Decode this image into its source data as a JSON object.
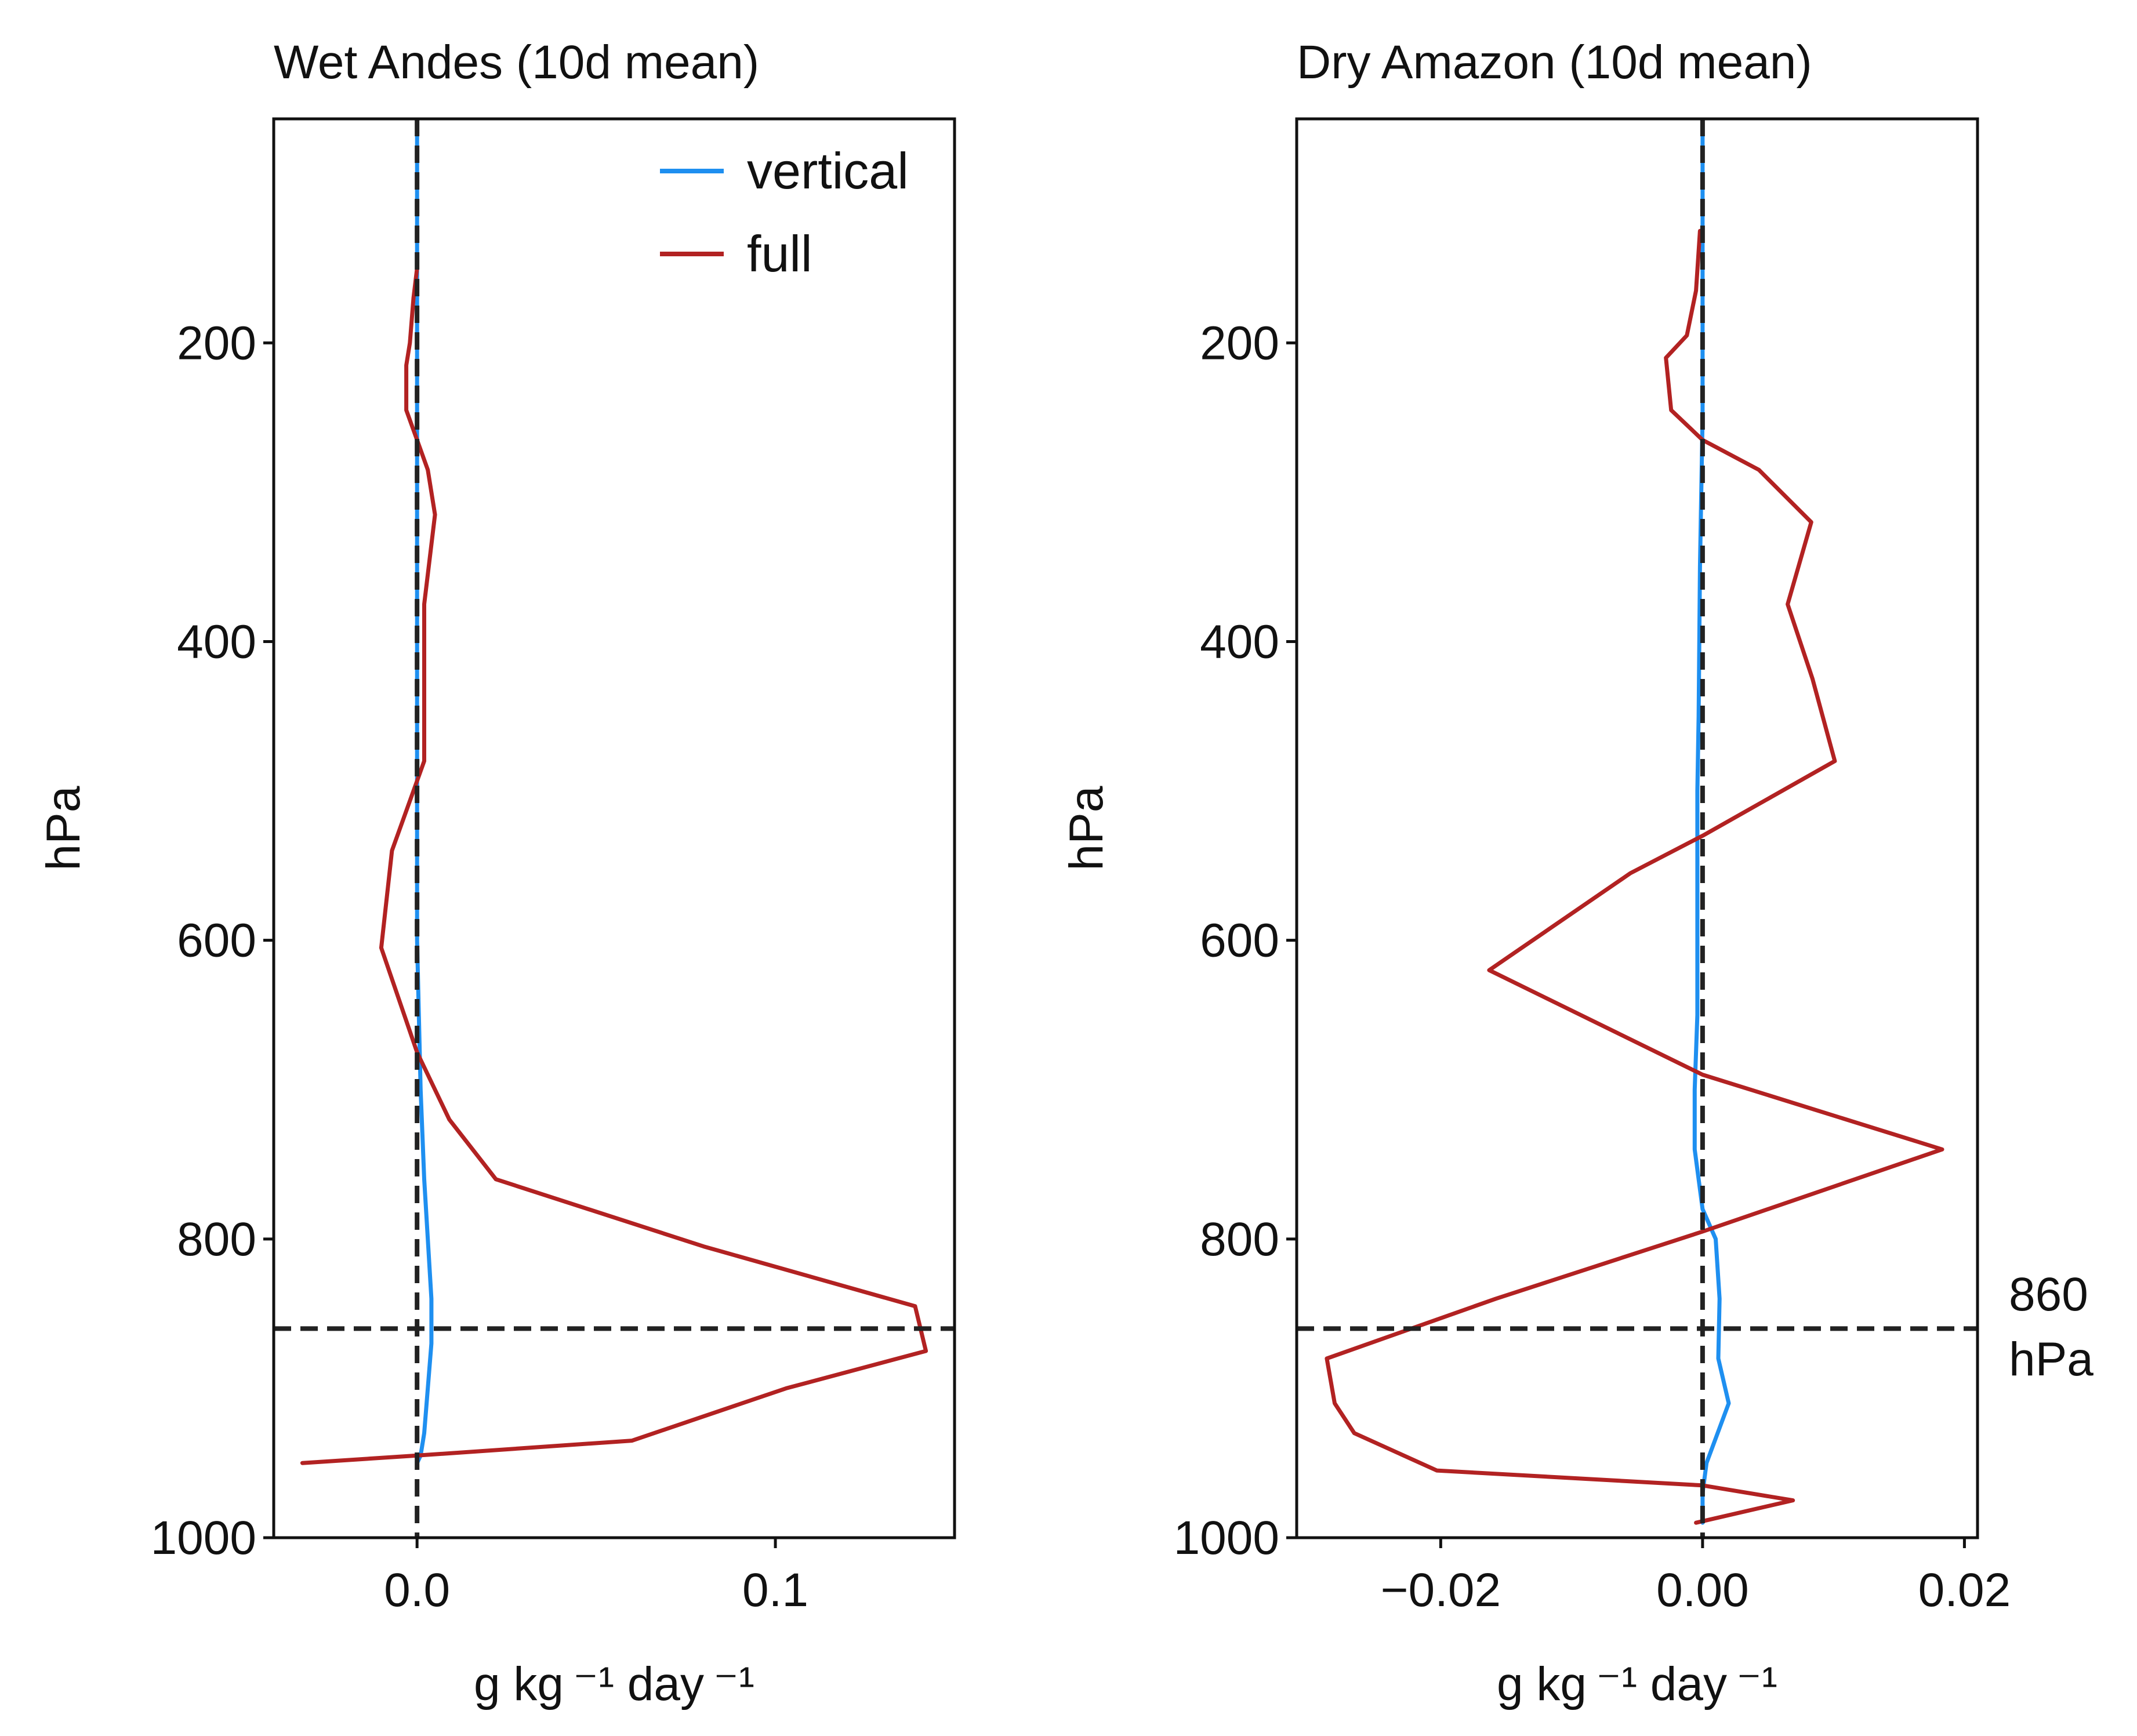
{
  "chart_data": [
    {
      "type": "line",
      "title": "Wet Andes (10d mean)",
      "xlabel": "g kg ⁻¹ day ⁻¹",
      "ylabel": "hPa",
      "xlim": [
        -0.04,
        0.15
      ],
      "ylim": [
        1000,
        50
      ],
      "y_inverted": true,
      "xticks": [
        0.0,
        0.1
      ],
      "xtick_labels": [
        "0.0",
        "0.1"
      ],
      "yticks": [
        200,
        400,
        600,
        800,
        1000
      ],
      "ytick_labels": [
        "200",
        "400",
        "600",
        "800",
        "1000"
      ],
      "vline_x": 0.0,
      "hline_y": 860,
      "legend": {
        "placement": "top-right",
        "entries": [
          "vertical",
          "full"
        ]
      },
      "series": [
        {
          "name": "vertical",
          "color": "#1e8ff0",
          "x": [
            0.0,
            0.0,
            0.0,
            0.0,
            0.0,
            0.0,
            0.0,
            0.0,
            0.0,
            0.0,
            0.001,
            0.002,
            0.003,
            0.004,
            0.004,
            0.003,
            0.002,
            0.001,
            0.0
          ],
          "y": [
            50,
            150,
            250,
            300,
            350,
            400,
            450,
            500,
            550,
            600,
            700,
            760,
            800,
            840,
            870,
            900,
            930,
            945,
            950
          ]
        },
        {
          "name": "full",
          "color": "#b22222",
          "x": [
            0.0,
            -0.001,
            -0.002,
            -0.003,
            -0.003,
            0.0,
            0.003,
            0.005,
            0.002,
            0.002,
            0.002,
            -0.007,
            -0.01,
            0.0,
            0.009,
            0.022,
            0.08,
            0.139,
            0.142,
            0.103,
            0.06,
            0.0,
            -0.032
          ],
          "y": [
            150,
            170,
            200,
            215,
            245,
            265,
            285,
            315,
            375,
            450,
            480,
            540,
            605,
            675,
            720,
            760,
            805,
            845,
            875,
            900,
            935,
            945,
            950
          ]
        }
      ]
    },
    {
      "type": "line",
      "title": "Dry Amazon (10d mean)",
      "xlabel": "g kg ⁻¹ day ⁻¹",
      "ylabel": "hPa",
      "xlim": [
        -0.031,
        0.021
      ],
      "ylim": [
        1000,
        50
      ],
      "y_inverted": true,
      "xticks": [
        -0.02,
        0.0,
        0.02
      ],
      "xtick_labels": [
        "−0.02",
        "0.00",
        "0.02"
      ],
      "yticks": [
        200,
        400,
        600,
        800,
        1000
      ],
      "ytick_labels": [
        "200",
        "400",
        "600",
        "800",
        "1000"
      ],
      "vline_x": 0.0,
      "hline_y": 860,
      "hline_label_line1": "860",
      "hline_label_line2": "hPa",
      "series": [
        {
          "name": "vertical",
          "color": "#1e8ff0",
          "x": [
            0.0,
            0.0,
            0.0,
            -0.0002,
            -0.0003,
            -0.0004,
            -0.0004,
            -0.0004,
            -0.0004,
            -0.0006,
            -0.0006,
            0.0,
            0.001,
            0.0013,
            0.0012,
            0.002,
            0.0003,
            0.0,
            0.0
          ],
          "y": [
            50,
            150,
            250,
            350,
            450,
            500,
            550,
            600,
            650,
            700,
            740,
            780,
            800,
            840,
            880,
            910,
            950,
            970,
            990
          ]
        },
        {
          "name": "full",
          "color": "#b22222",
          "x": [
            -0.0002,
            -0.0005,
            -0.0012,
            -0.0028,
            -0.0024,
            0.0,
            0.0043,
            0.0083,
            0.0065,
            0.0084,
            0.0101,
            0.0,
            -0.0055,
            -0.0163,
            0.0,
            0.0183,
            0.0,
            -0.0158,
            -0.0287,
            -0.0281,
            -0.0266,
            -0.0203,
            -0.0,
            0.0069,
            -0.0005
          ],
          "y": [
            125,
            165,
            195,
            210,
            245,
            265,
            285,
            320,
            375,
            425,
            480,
            530,
            555,
            620,
            690,
            740,
            795,
            840,
            880,
            910,
            930,
            955,
            965,
            975,
            990
          ]
        }
      ]
    }
  ]
}
